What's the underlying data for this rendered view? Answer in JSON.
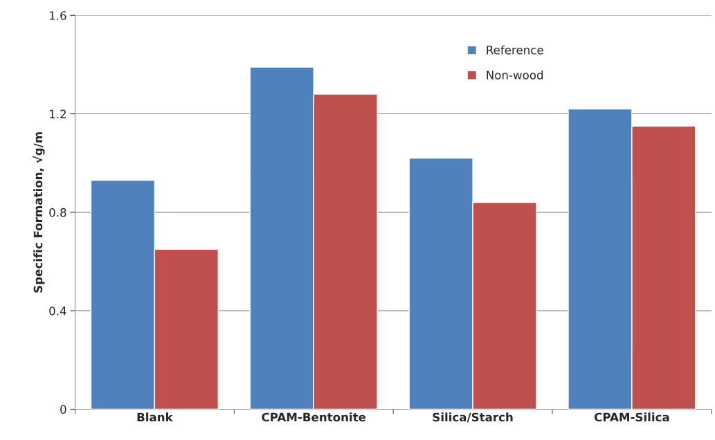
{
  "chart_data": {
    "type": "bar",
    "ylabel": "Specific Formation, √g/m",
    "categories": [
      "Blank",
      "CPAM-Bentonite",
      "Silica/Starch",
      "CPAM-Silica"
    ],
    "series": [
      {
        "name": "Reference",
        "color": "#4f81bd",
        "values": [
          0.93,
          1.39,
          1.02,
          1.22
        ]
      },
      {
        "name": "Non-wood",
        "color": "#c0504d",
        "values": [
          0.65,
          1.28,
          0.84,
          1.15
        ]
      }
    ],
    "ylim": [
      0,
      1.6
    ],
    "yticks": [
      0,
      0.4,
      0.8,
      1.2,
      1.6
    ],
    "grid": "y",
    "legend": "top right"
  }
}
